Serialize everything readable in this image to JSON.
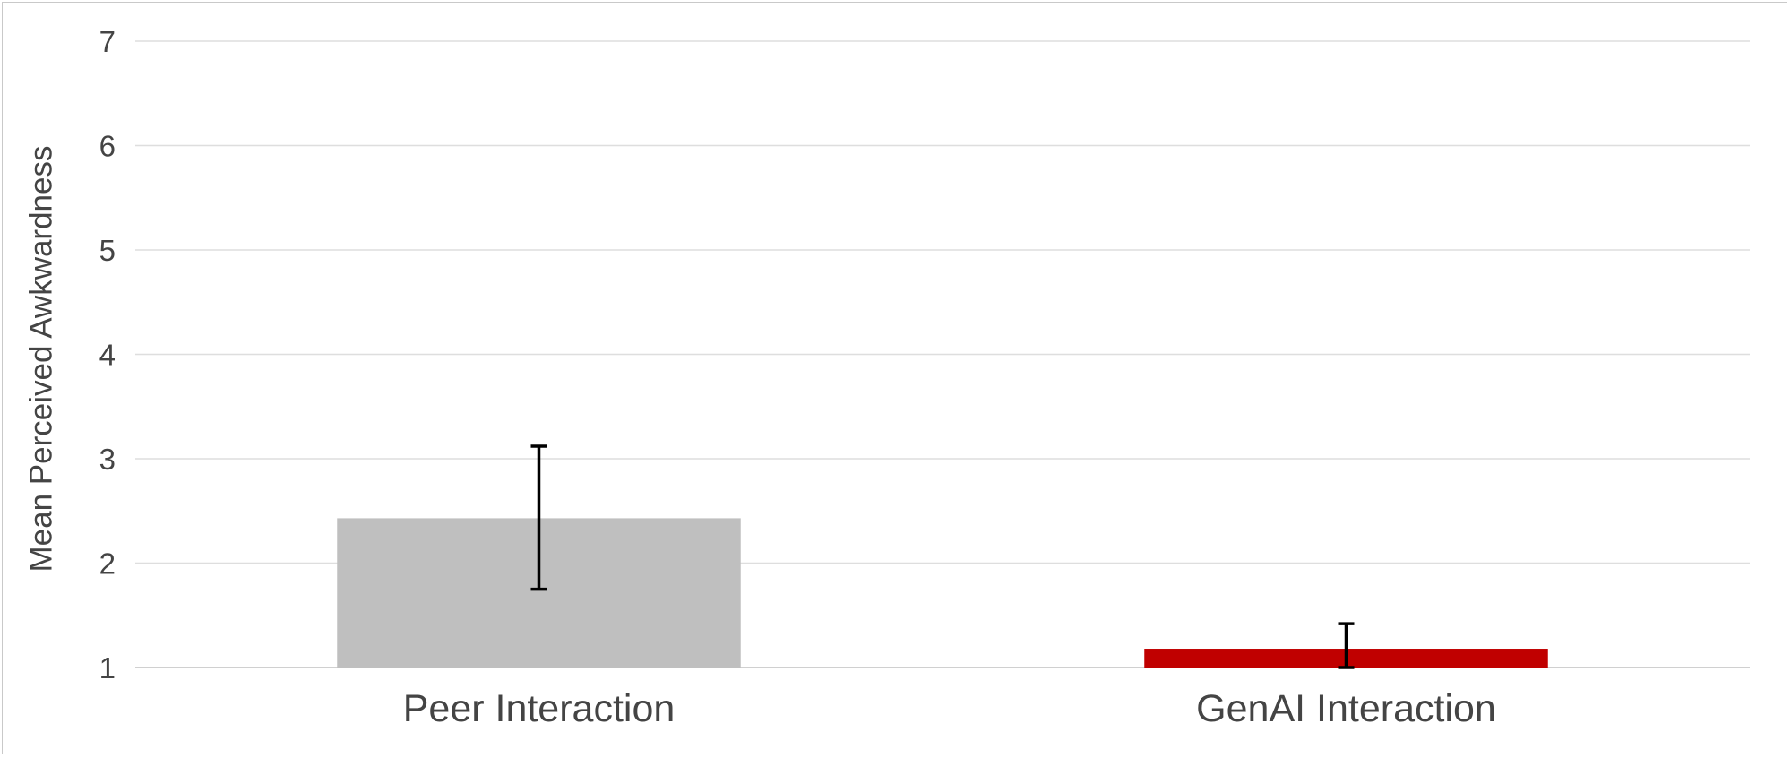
{
  "chart_data": {
    "type": "bar",
    "title": "",
    "xlabel": "",
    "ylabel": "Mean Perceived Awkwardness",
    "categories": [
      "Peer Interaction",
      "GenAI Interaction"
    ],
    "values": [
      2.43,
      1.18
    ],
    "error_bars": [
      {
        "low": 1.75,
        "high": 3.12
      },
      {
        "low": 1.0,
        "high": 1.42
      }
    ],
    "colors": [
      "#bfbfbf",
      "#c00000"
    ],
    "ylim": [
      1,
      7
    ],
    "yticks": [
      "1",
      "2",
      "3",
      "4",
      "5",
      "6",
      "7"
    ],
    "grid": true,
    "legend": "none"
  }
}
